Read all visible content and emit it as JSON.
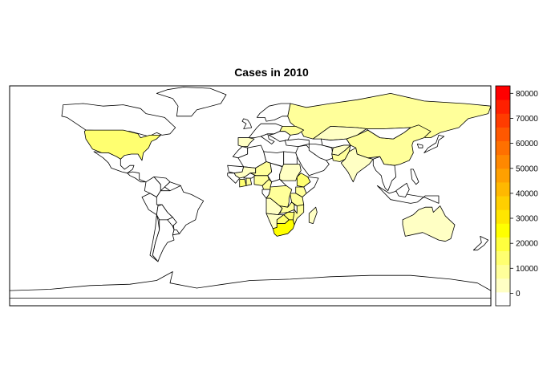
{
  "title": "Cases in 2010",
  "colors": {
    "frame": "#000000",
    "country_stroke": "#000000",
    "no_cases": "#ffffff",
    "scale": [
      "#ffffff",
      "#ffffc4",
      "#ffff9a",
      "#ffff70",
      "#ffff3e",
      "#ffff00",
      "#ffe600",
      "#ffcf00",
      "#ffb800",
      "#ffa000",
      "#ff8800",
      "#ff7000",
      "#ff5800",
      "#ff3c00",
      "#ff2000",
      "#ff0000"
    ]
  },
  "legend": {
    "min": -5000,
    "max": 83000,
    "ticks": [
      0,
      10000,
      20000,
      30000,
      40000,
      50000,
      60000,
      70000,
      80000
    ],
    "tick_labels": [
      "0",
      "10000",
      "20000",
      "30000",
      "40000",
      "50000",
      "60000",
      "70000",
      "80000"
    ]
  },
  "map_data": {
    "projection": "equirectangular",
    "lon_range": [
      -180,
      180
    ],
    "lat_range": [
      -90,
      84
    ],
    "regions": [
      {
        "name": "USA",
        "value": 12000
      },
      {
        "name": "Russia",
        "value": 8000
      },
      {
        "name": "China",
        "value": 9000
      },
      {
        "name": "Kazakhstan",
        "value": 4000
      },
      {
        "name": "India",
        "value": 1500
      },
      {
        "name": "Pakistan",
        "value": 6000
      },
      {
        "name": "Afghanistan",
        "value": 5000
      },
      {
        "name": "Ukraine",
        "value": 7000
      },
      {
        "name": "Ethiopia",
        "value": 14000
      },
      {
        "name": "South Africa",
        "value": 26000
      },
      {
        "name": "Zimbabwe",
        "value": 15000
      },
      {
        "name": "Mozambique",
        "value": 11000
      },
      {
        "name": "Zambia",
        "value": 9000
      },
      {
        "name": "Tanzania",
        "value": 10000
      },
      {
        "name": "Kenya",
        "value": 7000
      },
      {
        "name": "Nigeria",
        "value": 8000
      },
      {
        "name": "Sudan",
        "value": 2000
      },
      {
        "name": "Angola",
        "value": 5000
      },
      {
        "name": "DR Congo",
        "value": 6000
      },
      {
        "name": "Niger",
        "value": 9000
      },
      {
        "name": "Mali",
        "value": 5000
      },
      {
        "name": "Cote d'Ivoire",
        "value": 12000
      },
      {
        "name": "Ghana",
        "value": 8000
      },
      {
        "name": "Cameroon",
        "value": 9000
      },
      {
        "name": "Namibia",
        "value": 4000
      },
      {
        "name": "Botswana",
        "value": 12000
      },
      {
        "name": "Madagascar",
        "value": 1000
      },
      {
        "name": "Spain",
        "value": 3000
      },
      {
        "name": "Australia",
        "value": 500
      },
      {
        "name": "Brazil",
        "value": 300
      },
      {
        "name": "Canada",
        "value": 0
      },
      {
        "name": "Argentina",
        "value": 0
      },
      {
        "name": "Greenland",
        "value": 0
      },
      {
        "name": "Indonesia",
        "value": 0
      },
      {
        "name": "Antarctica",
        "value": 0
      }
    ]
  }
}
